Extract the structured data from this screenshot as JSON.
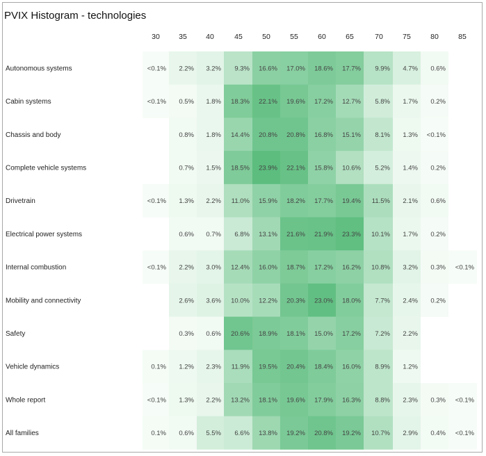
{
  "chart_data": {
    "type": "heatmap",
    "title": "PVIX Histogram - technologies",
    "columns": [
      "30",
      "35",
      "40",
      "45",
      "50",
      "55",
      "60",
      "65",
      "70",
      "75",
      "80",
      "85"
    ],
    "rows": [
      {
        "label": "Autonomous systems",
        "cells": [
          "<0.1%",
          "2.2%",
          "3.2%",
          "9.3%",
          "16.6%",
          "17.0%",
          "18.6%",
          "17.7%",
          "9.9%",
          "4.7%",
          "0.6%",
          ""
        ]
      },
      {
        "label": "Cabin systems",
        "cells": [
          "<0.1%",
          "0.5%",
          "1.8%",
          "18.3%",
          "22.1%",
          "19.6%",
          "17.2%",
          "12.7%",
          "5.8%",
          "1.7%",
          "0.2%",
          ""
        ]
      },
      {
        "label": "Chassis and body",
        "cells": [
          "",
          "0.8%",
          "1.8%",
          "14.4%",
          "20.8%",
          "20.8%",
          "16.8%",
          "15.1%",
          "8.1%",
          "1.3%",
          "<0.1%",
          ""
        ]
      },
      {
        "label": "Complete vehicle systems",
        "cells": [
          "",
          "0.7%",
          "1.5%",
          "18.5%",
          "23.9%",
          "22.1%",
          "15.8%",
          "10.6%",
          "5.2%",
          "1.4%",
          "0.2%",
          ""
        ]
      },
      {
        "label": "Drivetrain",
        "cells": [
          "<0.1%",
          "1.3%",
          "2.2%",
          "11.0%",
          "15.9%",
          "18.2%",
          "17.7%",
          "19.4%",
          "11.5%",
          "2.1%",
          "0.6%",
          ""
        ]
      },
      {
        "label": "Electrical power systems",
        "cells": [
          "",
          "0.6%",
          "0.7%",
          "6.8%",
          "13.1%",
          "21.6%",
          "21.9%",
          "23.3%",
          "10.1%",
          "1.7%",
          "0.2%",
          ""
        ]
      },
      {
        "label": "Internal combustion",
        "cells": [
          "<0.1%",
          "2.2%",
          "3.0%",
          "12.4%",
          "16.0%",
          "18.7%",
          "17.2%",
          "16.2%",
          "10.8%",
          "3.2%",
          "0.3%",
          "<0.1%"
        ]
      },
      {
        "label": "Mobility and connectivity",
        "cells": [
          "",
          "2.6%",
          "3.6%",
          "10.0%",
          "12.2%",
          "20.3%",
          "23.0%",
          "18.0%",
          "7.7%",
          "2.4%",
          "0.2%",
          ""
        ]
      },
      {
        "label": "Safety",
        "cells": [
          "",
          "0.3%",
          "0.6%",
          "20.6%",
          "18.9%",
          "18.1%",
          "15.0%",
          "17.2%",
          "7.2%",
          "2.2%",
          "",
          ""
        ]
      },
      {
        "label": "Vehicle dynamics",
        "cells": [
          "0.1%",
          "1.2%",
          "2.3%",
          "11.9%",
          "19.5%",
          "20.4%",
          "18.4%",
          "16.0%",
          "8.9%",
          "1.2%",
          "",
          ""
        ]
      },
      {
        "label": "Whole report",
        "cells": [
          "<0.1%",
          "1.3%",
          "2.2%",
          "13.2%",
          "18.1%",
          "19.6%",
          "17.9%",
          "16.3%",
          "8.8%",
          "2.3%",
          "0.3%",
          "<0.1%"
        ]
      },
      {
        "label": "All families",
        "cells": [
          "0.1%",
          "0.6%",
          "5.5%",
          "6.6%",
          "13.8%",
          "19.2%",
          "20.8%",
          "19.2%",
          "10.7%",
          "2.9%",
          "0.4%",
          "<0.1%"
        ]
      }
    ],
    "color_low": "#ffffff",
    "color_high": "#5cbd7e"
  }
}
